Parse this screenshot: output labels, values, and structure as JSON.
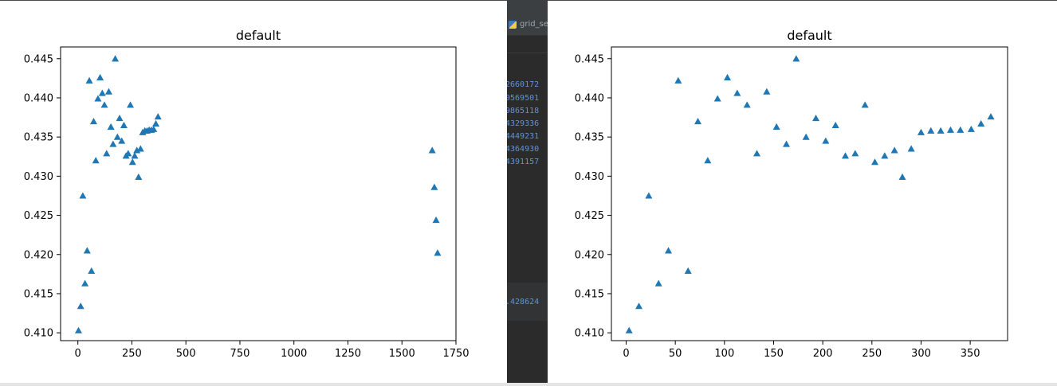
{
  "ide": {
    "tab_label": "grid_se",
    "console_lines": [
      "2660172",
      "0569501",
      "9865118",
      "4329336",
      "4449231",
      "4364930",
      "4391157"
    ],
    "console_bottom": ".428624"
  },
  "chart_data": [
    {
      "type": "scatter",
      "title": "default",
      "xlabel": "",
      "ylabel": "",
      "xlim": [
        -80,
        1750
      ],
      "ylim": [
        0.409,
        0.4465
      ],
      "xticks": [
        0,
        250,
        500,
        750,
        1000,
        1250,
        1500,
        1750
      ],
      "xtick_labels": [
        "0",
        "250",
        "500",
        "750",
        "1000",
        "1250",
        "1500",
        "1750"
      ],
      "yticks": [
        0.41,
        0.415,
        0.42,
        0.425,
        0.43,
        0.435,
        0.44,
        0.445
      ],
      "ytick_labels": [
        "0.410",
        "0.415",
        "0.420",
        "0.425",
        "0.430",
        "0.435",
        "0.440",
        "0.445"
      ],
      "grid": false,
      "marker": "triangle",
      "color": "#1f77b4",
      "x": [
        3,
        13,
        23,
        33,
        43,
        53,
        63,
        73,
        83,
        93,
        103,
        113,
        123,
        133,
        143,
        153,
        163,
        173,
        183,
        193,
        203,
        213,
        223,
        233,
        243,
        253,
        263,
        273,
        281,
        290,
        300,
        310,
        320,
        330,
        340,
        351,
        361,
        371,
        1640,
        1650,
        1658,
        1665
      ],
      "y": [
        0.4103,
        0.4134,
        0.4275,
        0.4163,
        0.4205,
        0.4422,
        0.4179,
        0.437,
        0.432,
        0.4399,
        0.4426,
        0.4406,
        0.4391,
        0.4329,
        0.4408,
        0.4363,
        0.4341,
        0.445,
        0.435,
        0.4374,
        0.4345,
        0.4365,
        0.4326,
        0.4329,
        0.4391,
        0.4318,
        0.4326,
        0.4333,
        0.4299,
        0.4335,
        0.4356,
        0.4358,
        0.4358,
        0.4359,
        0.4359,
        0.436,
        0.4367,
        0.4376,
        0.4333,
        0.4286,
        0.4244,
        0.4202
      ]
    },
    {
      "type": "scatter",
      "title": "default",
      "xlabel": "",
      "ylabel": "",
      "xlim": [
        -15,
        388
      ],
      "ylim": [
        0.409,
        0.4465
      ],
      "xticks": [
        0,
        50,
        100,
        150,
        200,
        250,
        300,
        350
      ],
      "xtick_labels": [
        "0",
        "50",
        "100",
        "150",
        "200",
        "250",
        "300",
        "350"
      ],
      "yticks": [
        0.41,
        0.415,
        0.42,
        0.425,
        0.43,
        0.435,
        0.44,
        0.445
      ],
      "ytick_labels": [
        "0.410",
        "0.415",
        "0.420",
        "0.425",
        "0.430",
        "0.435",
        "0.440",
        "0.445"
      ],
      "grid": false,
      "marker": "triangle",
      "color": "#1f77b4",
      "x": [
        3,
        13,
        23,
        33,
        43,
        53,
        63,
        73,
        83,
        93,
        103,
        113,
        123,
        133,
        143,
        153,
        163,
        173,
        183,
        193,
        203,
        213,
        223,
        233,
        243,
        253,
        263,
        273,
        281,
        290,
        300,
        310,
        320,
        330,
        340,
        351,
        361,
        371
      ],
      "y": [
        0.4103,
        0.4134,
        0.4275,
        0.4163,
        0.4205,
        0.4422,
        0.4179,
        0.437,
        0.432,
        0.4399,
        0.4426,
        0.4406,
        0.4391,
        0.4329,
        0.4408,
        0.4363,
        0.4341,
        0.445,
        0.435,
        0.4374,
        0.4345,
        0.4365,
        0.4326,
        0.4329,
        0.4391,
        0.4318,
        0.4326,
        0.4333,
        0.4299,
        0.4335,
        0.4356,
        0.4358,
        0.4358,
        0.4359,
        0.4359,
        0.436,
        0.4367,
        0.4376
      ]
    }
  ]
}
